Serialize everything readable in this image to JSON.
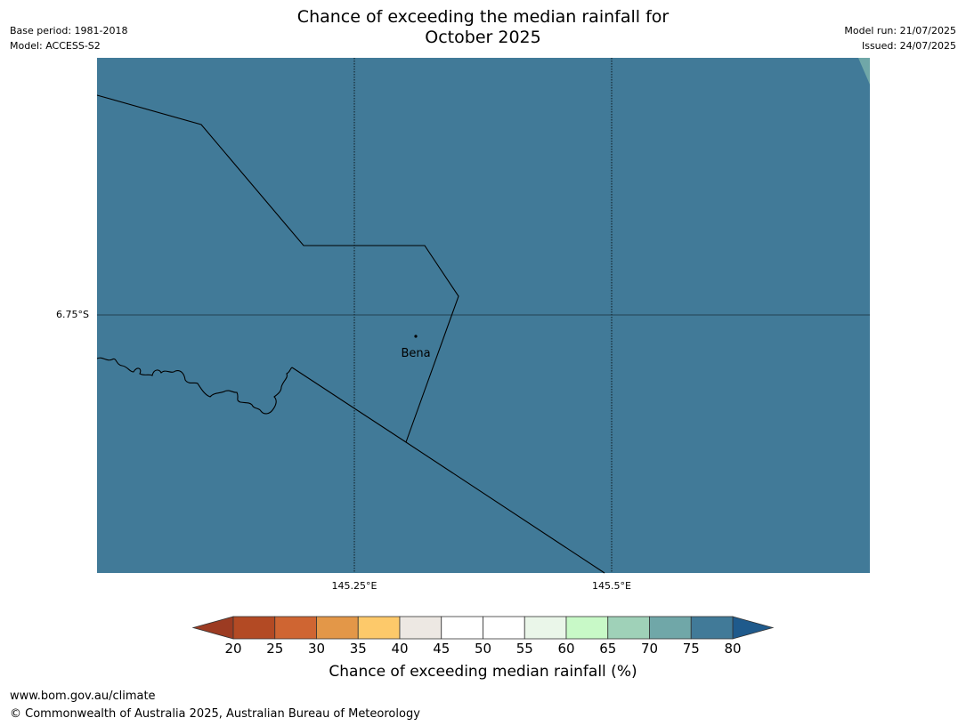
{
  "title": {
    "line1": "Chance of exceeding the median rainfall for",
    "line2": "October 2025"
  },
  "meta": {
    "base_period": "Base period: 1981-2018",
    "model": "Model: ACCESS-S2",
    "model_run": "Model run: 21/07/2025",
    "issued": "Issued: 24/07/2025"
  },
  "map": {
    "fill_color": "#417a98",
    "corner_color": "#70a7a8",
    "place_label": "Bena",
    "lat_tick": "6.75°S",
    "lon_ticks": [
      "145.25°E",
      "145.5°E"
    ]
  },
  "colorbar": {
    "title": "Chance of exceeding median rainfall (%)",
    "ticks": [
      "20",
      "25",
      "30",
      "35",
      "40",
      "45",
      "50",
      "55",
      "60",
      "65",
      "70",
      "75",
      "80"
    ],
    "under_color": "#9c3b22",
    "over_color": "#1f5a8c",
    "colors": [
      "#b34a24",
      "#cf6532",
      "#e39748",
      "#fdc96a",
      "#ede8e3",
      "#ffffff",
      "#ffffff",
      "#eaf6e9",
      "#c8f9c7",
      "#9fd1b8",
      "#70a7a8",
      "#417a98"
    ]
  },
  "footer": {
    "url": "www.bom.gov.au/climate",
    "copyright": "© Commonwealth of Australia 2025, Australian Bureau of Meteorology"
  }
}
